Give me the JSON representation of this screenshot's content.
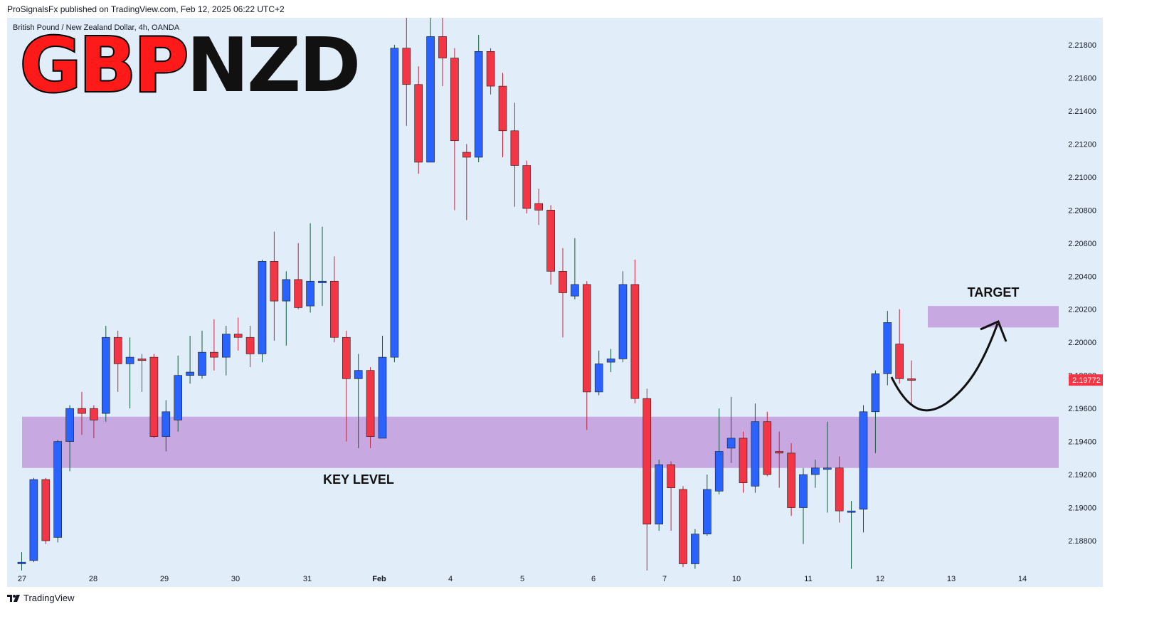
{
  "header": {
    "publisher": "ProSignalsFx published on TradingView.com, Feb 12, 2025 06:22 UTC+2",
    "symbol_line": "British Pound / New Zealand Dollar, 4h, OANDA"
  },
  "brand": {
    "part1": "GBP",
    "part2": "NZD"
  },
  "footer": {
    "label": "TradingView"
  },
  "colors": {
    "background": "#e1edf8",
    "bull": "#2962ff",
    "bear": "#f23645",
    "zone": "#c8a8e0",
    "price_badge": "#f23645",
    "brand_red": "#ff1a1a"
  },
  "icons": {
    "footer_logo": "tradingview-logo-icon"
  },
  "chart_data": {
    "type": "candlestick",
    "title": "British Pound / New Zealand Dollar, 4h, OANDA",
    "ylim": [
      2.1862,
      2.2205
    ],
    "y_ticks": [
      "2.21800",
      "2.21600",
      "2.21400",
      "2.21200",
      "2.21000",
      "2.20800",
      "2.20600",
      "2.20400",
      "2.20200",
      "2.20000",
      "2.19800",
      "2.19600",
      "2.19400",
      "2.19200",
      "2.19000",
      "2.18800"
    ],
    "x_ticks": [
      "27",
      "28",
      "29",
      "30",
      "31",
      "Feb",
      "4",
      "5",
      "6",
      "7",
      "10",
      "11",
      "12",
      "13",
      "14"
    ],
    "grid": false,
    "last_price": "2.19772",
    "zones": [
      {
        "label": "KEY LEVEL",
        "low": 2.1924,
        "high": 2.1955
      },
      {
        "label": "TARGET",
        "low": 2.2009,
        "high": 2.2022
      }
    ],
    "candles": [
      [
        2.1866,
        2.1867,
        2.1862,
        2.1873
      ],
      [
        2.1868,
        2.1917,
        2.1867,
        2.1918
      ],
      [
        2.1917,
        2.188,
        2.1878,
        2.1918
      ],
      [
        2.1882,
        2.194,
        2.1879,
        2.1941
      ],
      [
        2.194,
        2.196,
        2.1922,
        2.1962
      ],
      [
        2.196,
        2.1957,
        2.1944,
        2.197
      ],
      [
        2.196,
        2.1953,
        2.1942,
        2.1962
      ],
      [
        2.1957,
        2.2003,
        2.1952,
        2.201
      ],
      [
        2.2003,
        2.1987,
        2.197,
        2.2007
      ],
      [
        2.1987,
        2.1991,
        2.196,
        2.2003
      ],
      [
        2.199,
        2.1989,
        2.197,
        2.1993
      ],
      [
        2.1991,
        2.1943,
        2.1942,
        2.1993
      ],
      [
        2.1943,
        2.1958,
        2.1934,
        2.1965
      ],
      [
        2.1953,
        2.198,
        2.1946,
        2.1992
      ],
      [
        2.198,
        2.1982,
        2.1975,
        2.2004
      ],
      [
        2.198,
        2.1994,
        2.1978,
        2.2007
      ],
      [
        2.1994,
        2.1991,
        2.1983,
        2.2014
      ],
      [
        2.1991,
        2.2005,
        2.198,
        2.201
      ],
      [
        2.2005,
        2.2003,
        2.1995,
        2.2015
      ],
      [
        2.2003,
        2.1993,
        2.1985,
        2.201
      ],
      [
        2.1993,
        2.2049,
        2.1988,
        2.205
      ],
      [
        2.2049,
        2.2025,
        2.2001,
        2.2067
      ],
      [
        2.2025,
        2.2038,
        2.1998,
        2.2043
      ],
      [
        2.2038,
        2.2021,
        2.202,
        2.206
      ],
      [
        2.2022,
        2.2037,
        2.2018,
        2.2072
      ],
      [
        2.2036,
        2.2037,
        2.2022,
        2.207
      ],
      [
        2.2037,
        2.2003,
        2.2,
        2.2052
      ],
      [
        2.2003,
        2.1978,
        2.194,
        2.2007
      ],
      [
        2.1978,
        2.1983,
        2.1936,
        2.1993
      ],
      [
        2.1983,
        2.1943,
        2.1936,
        2.1985
      ],
      [
        2.1942,
        2.1991,
        2.1942,
        2.2004
      ],
      [
        2.1991,
        2.2178,
        2.1988,
        2.218
      ],
      [
        2.2178,
        2.2156,
        2.2131,
        2.2204
      ],
      [
        2.2156,
        2.2109,
        2.2102,
        2.2167
      ],
      [
        2.2109,
        2.2185,
        2.2109,
        2.2199
      ],
      [
        2.2185,
        2.2172,
        2.2155,
        2.2205
      ],
      [
        2.2172,
        2.2122,
        2.208,
        2.2178
      ],
      [
        2.2115,
        2.2112,
        2.2074,
        2.212
      ],
      [
        2.2112,
        2.2176,
        2.2109,
        2.2186
      ],
      [
        2.2176,
        2.2155,
        2.215,
        2.2178
      ],
      [
        2.2155,
        2.2128,
        2.2112,
        2.2163
      ],
      [
        2.2128,
        2.2107,
        2.2082,
        2.2145
      ],
      [
        2.2107,
        2.2081,
        2.2078,
        2.211
      ],
      [
        2.2084,
        2.208,
        2.2071,
        2.2093
      ],
      [
        2.208,
        2.2043,
        2.2035,
        2.2083
      ],
      [
        2.2043,
        2.203,
        2.2003,
        2.2057
      ],
      [
        2.2028,
        2.2035,
        2.2026,
        2.2063
      ],
      [
        2.2035,
        2.197,
        2.1947,
        2.2037
      ],
      [
        2.197,
        2.1987,
        2.1968,
        2.1995
      ],
      [
        2.1988,
        2.199,
        2.1982,
        2.1996
      ],
      [
        2.199,
        2.2035,
        2.1988,
        2.2043
      ],
      [
        2.2035,
        2.1966,
        2.1963,
        2.205
      ],
      [
        2.1966,
        2.189,
        2.1862,
        2.1972
      ],
      [
        2.189,
        2.1926,
        2.1886,
        2.1929
      ],
      [
        2.1926,
        2.1912,
        2.1886,
        2.1928
      ],
      [
        2.1911,
        2.1866,
        2.1864,
        2.1913
      ],
      [
        2.1866,
        2.1884,
        2.1863,
        2.1887
      ],
      [
        2.1884,
        2.1911,
        2.1883,
        2.192
      ],
      [
        2.191,
        2.1934,
        2.1908,
        2.196
      ],
      [
        2.1936,
        2.1942,
        2.1927,
        2.1967
      ],
      [
        2.1942,
        2.1915,
        2.1909,
        2.1946
      ],
      [
        2.1913,
        2.1952,
        2.1909,
        2.1963
      ],
      [
        2.1952,
        2.192,
        2.1919,
        2.1958
      ],
      [
        2.1934,
        2.1933,
        2.1912,
        2.1946
      ],
      [
        2.1933,
        2.19,
        2.1895,
        2.1939
      ],
      [
        2.19,
        2.192,
        2.1878,
        2.1924
      ],
      [
        2.192,
        2.1924,
        2.1912,
        2.1929
      ],
      [
        2.1924,
        2.1924,
        2.1897,
        2.1952
      ],
      [
        2.1924,
        2.1898,
        2.1891,
        2.1931
      ],
      [
        2.1898,
        2.1898,
        2.1863,
        2.1904
      ],
      [
        2.1899,
        2.1958,
        2.1885,
        2.1962
      ],
      [
        2.1958,
        2.1981,
        2.1933,
        2.1983
      ],
      [
        2.1981,
        2.2012,
        2.1974,
        2.2019
      ],
      [
        2.1999,
        2.1978,
        2.1975,
        2.202
      ],
      [
        2.1978,
        2.1977,
        2.1963,
        2.1989
      ]
    ]
  }
}
